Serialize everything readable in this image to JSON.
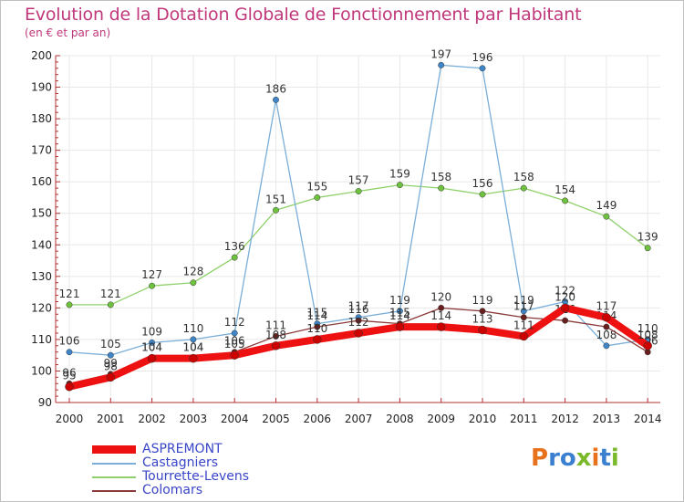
{
  "header": {
    "title": "Evolution de la Dotation Globale de Fonctionnement par Habitant",
    "subtitle": "(en € et par an)"
  },
  "logo": {
    "letters": [
      "P",
      "r",
      "o",
      "x",
      "i",
      "t",
      "i"
    ],
    "colors": [
      "#e8721c",
      "#3a7fd0",
      "#3a7fd0",
      "#79b92a",
      "#e8721c",
      "#3a7fd0",
      "#79b92a"
    ]
  },
  "colors": {
    "title": "#c0387b",
    "axis": "#b03030",
    "grid": "#e8e8e8",
    "legend_text": "#3a46c8"
  },
  "chart_data": {
    "type": "line",
    "title": "Evolution de la Dotation Globale de Fonctionnement par Habitant",
    "subtitle": "(en € et par an)",
    "x": [
      "2000",
      "2001",
      "2002",
      "2003",
      "2004",
      "2005",
      "2006",
      "2007",
      "2008",
      "2009",
      "2010",
      "2011",
      "2012",
      "2013",
      "2014"
    ],
    "ylim": [
      90,
      200
    ],
    "yticks": [
      90,
      100,
      110,
      120,
      130,
      140,
      150,
      160,
      170,
      180,
      190,
      200
    ],
    "grid": true,
    "legend_position": "bottom-left",
    "series": [
      {
        "name": "Tourrette-Levens",
        "color": "#8fd06a",
        "marker": "#6ec23e",
        "width": 1.3,
        "values": [
          121,
          121,
          127,
          128,
          136,
          151,
          155,
          157,
          159,
          158,
          156,
          158,
          154,
          149,
          139
        ],
        "labels": [
          "121",
          "121",
          "127",
          "128",
          "136",
          "151",
          "155",
          "157",
          "159",
          "158",
          "156",
          "158",
          "154",
          "149",
          "139"
        ]
      },
      {
        "name": "Castagniers",
        "color": "#7aaed8",
        "marker": "#3e86c8",
        "width": 1.3,
        "values": [
          106,
          105,
          109,
          110,
          112,
          186,
          115,
          117,
          119,
          197,
          196,
          119,
          122,
          108,
          110
        ],
        "labels": [
          "106",
          "105",
          "109",
          "110",
          "112",
          "186",
          "115",
          "117",
          "119",
          "197",
          "196",
          "119",
          "122",
          "108",
          "110"
        ]
      },
      {
        "name": "Colomars",
        "color": "#8b3a3a",
        "marker": "#6a1f1f",
        "width": 1.3,
        "values": [
          96,
          99,
          104,
          104,
          106,
          111,
          114,
          116,
          115,
          120,
          119,
          117,
          116,
          114,
          106
        ],
        "labels": [
          "96",
          "99",
          "104",
          "104",
          "106",
          "111",
          "114",
          "116",
          "115",
          "120",
          "119",
          "117",
          "116",
          "114",
          "106"
        ]
      },
      {
        "name": "ASPREMONT",
        "color": "#ee1111",
        "marker": "#cc0000",
        "width": 8,
        "values": [
          95,
          98,
          104,
          104,
          105,
          108,
          110,
          112,
          114,
          114,
          113,
          111,
          120,
          117,
          108
        ],
        "labels": [
          "95",
          "98",
          "104",
          "104",
          "105",
          "108",
          "110",
          "112",
          "114",
          "114",
          "113",
          "111",
          "120",
          "117",
          "108"
        ]
      }
    ],
    "legend": [
      "ASPREMONT",
      "Castagniers",
      "Tourrette-Levens",
      "Colomars"
    ]
  }
}
